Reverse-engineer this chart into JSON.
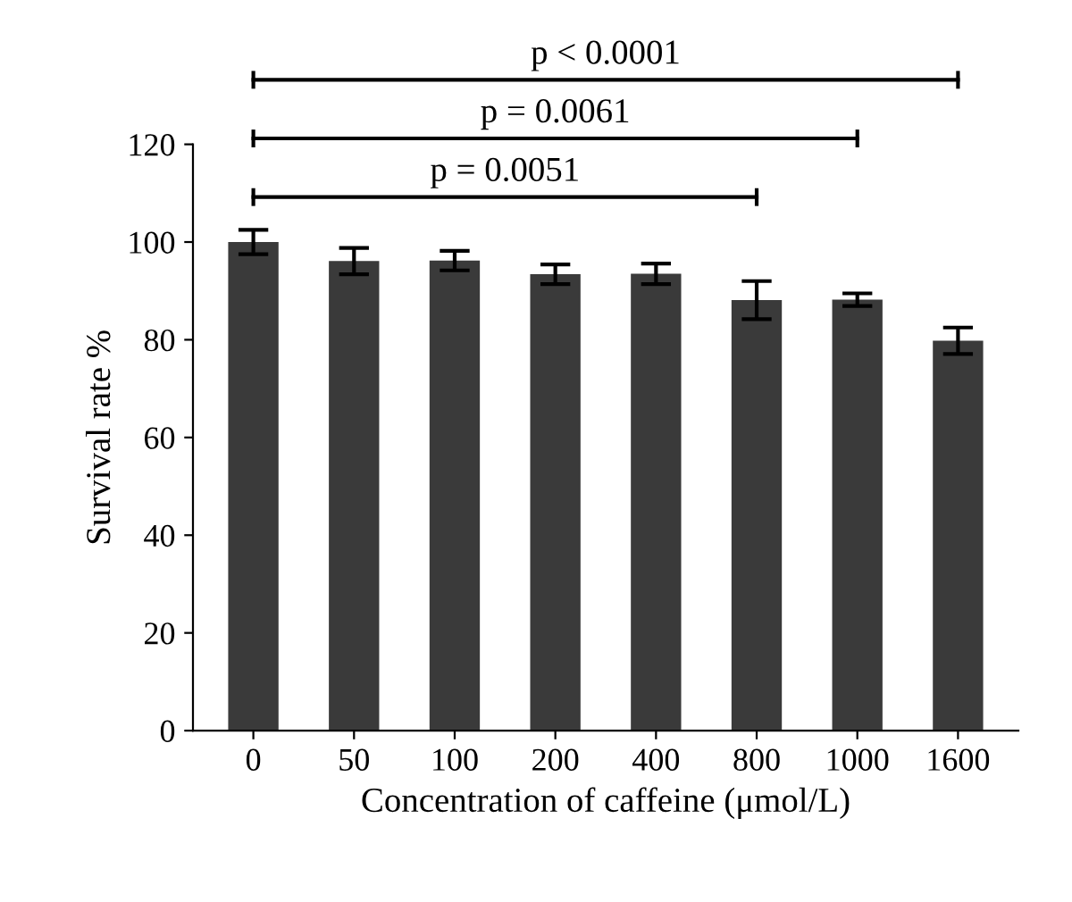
{
  "chart_data": {
    "type": "bar",
    "xlabel": "Concentration of caffeine (μmol/L)",
    "ylabel": "Survival rate %",
    "categories": [
      "0",
      "50",
      "100",
      "200",
      "400",
      "800",
      "1000",
      "1600"
    ],
    "values": [
      100,
      96.1,
      96.2,
      93.4,
      93.5,
      88.1,
      88.2,
      79.8
    ],
    "errors": [
      2.5,
      2.7,
      2,
      2,
      2.1,
      3.9,
      1.3,
      2.7
    ],
    "color": "#3a3a3a",
    "ylim": [
      0,
      120
    ],
    "yticks": [
      0,
      20,
      40,
      60,
      80,
      100,
      120
    ],
    "grid": false,
    "legend": false,
    "annotations": [
      "p < 0.0001",
      "p = 0.0061",
      "p = 0.0051"
    ]
  }
}
